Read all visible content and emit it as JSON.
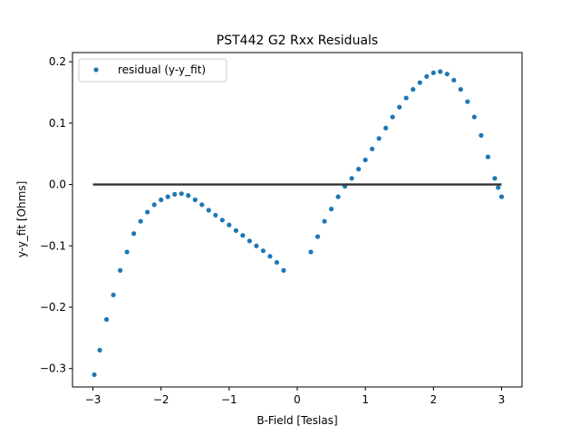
{
  "chart_data": {
    "type": "scatter",
    "title": "PST442 G2 Rxx Residuals",
    "xlabel": "B-Field [Teslas]",
    "ylabel": "y-y_fit [Ohms]",
    "xlim": [
      -3.3,
      3.3
    ],
    "ylim": [
      -0.33,
      0.215
    ],
    "xticks": [
      -3,
      -2,
      -1,
      0,
      1,
      2,
      3
    ],
    "xtick_labels": [
      "−3",
      "−2",
      "−1",
      "0",
      "1",
      "2",
      "3"
    ],
    "yticks": [
      -0.3,
      -0.2,
      -0.1,
      0.0,
      0.1,
      0.2
    ],
    "ytick_labels": [
      "−0.3",
      "−0.2",
      "−0.1",
      "0.0",
      "0.1",
      "0.2"
    ],
    "grid": false,
    "legend": {
      "position": "top-left",
      "entries": [
        "residual (y-y_fit)"
      ]
    },
    "series": [
      {
        "name": "residual (y-y_fit)",
        "color": "#1f77b4",
        "segments": [
          {
            "x": [
              -2.98,
              -2.9,
              -2.8,
              -2.7,
              -2.6,
              -2.5,
              -2.4,
              -2.3,
              -2.2,
              -2.1,
              -2.0,
              -1.9,
              -1.8,
              -1.7,
              -1.6,
              -1.5,
              -1.4,
              -1.3,
              -1.2,
              -1.1,
              -1.0,
              -0.9,
              -0.8,
              -0.7,
              -0.6,
              -0.5,
              -0.4,
              -0.3,
              -0.2
            ],
            "y": [
              -0.31,
              -0.27,
              -0.22,
              -0.18,
              -0.14,
              -0.11,
              -0.08,
              -0.06,
              -0.045,
              -0.033,
              -0.025,
              -0.02,
              -0.016,
              -0.015,
              -0.018,
              -0.025,
              -0.033,
              -0.042,
              -0.05,
              -0.058,
              -0.066,
              -0.075,
              -0.083,
              -0.092,
              -0.1,
              -0.108,
              -0.117,
              -0.127,
              -0.14
            ]
          },
          {
            "x": [
              0.2,
              0.3,
              0.4,
              0.5,
              0.6,
              0.7,
              0.8,
              0.9,
              1.0,
              1.1,
              1.2,
              1.3,
              1.4,
              1.5,
              1.6,
              1.7,
              1.8,
              1.9,
              2.0,
              2.1,
              2.2,
              2.3,
              2.4,
              2.5,
              2.6,
              2.7,
              2.8,
              2.9,
              2.95,
              3.0
            ],
            "y": [
              -0.11,
              -0.085,
              -0.06,
              -0.04,
              -0.02,
              -0.003,
              0.01,
              0.025,
              0.04,
              0.058,
              0.075,
              0.092,
              0.11,
              0.126,
              0.141,
              0.155,
              0.166,
              0.176,
              0.182,
              0.184,
              0.18,
              0.17,
              0.155,
              0.135,
              0.11,
              0.08,
              0.045,
              0.01,
              -0.005,
              -0.02
            ]
          }
        ]
      }
    ],
    "reference_line": {
      "x": [
        -3.0,
        3.0
      ],
      "y": [
        0.0,
        0.0
      ],
      "color": "#333333"
    }
  }
}
